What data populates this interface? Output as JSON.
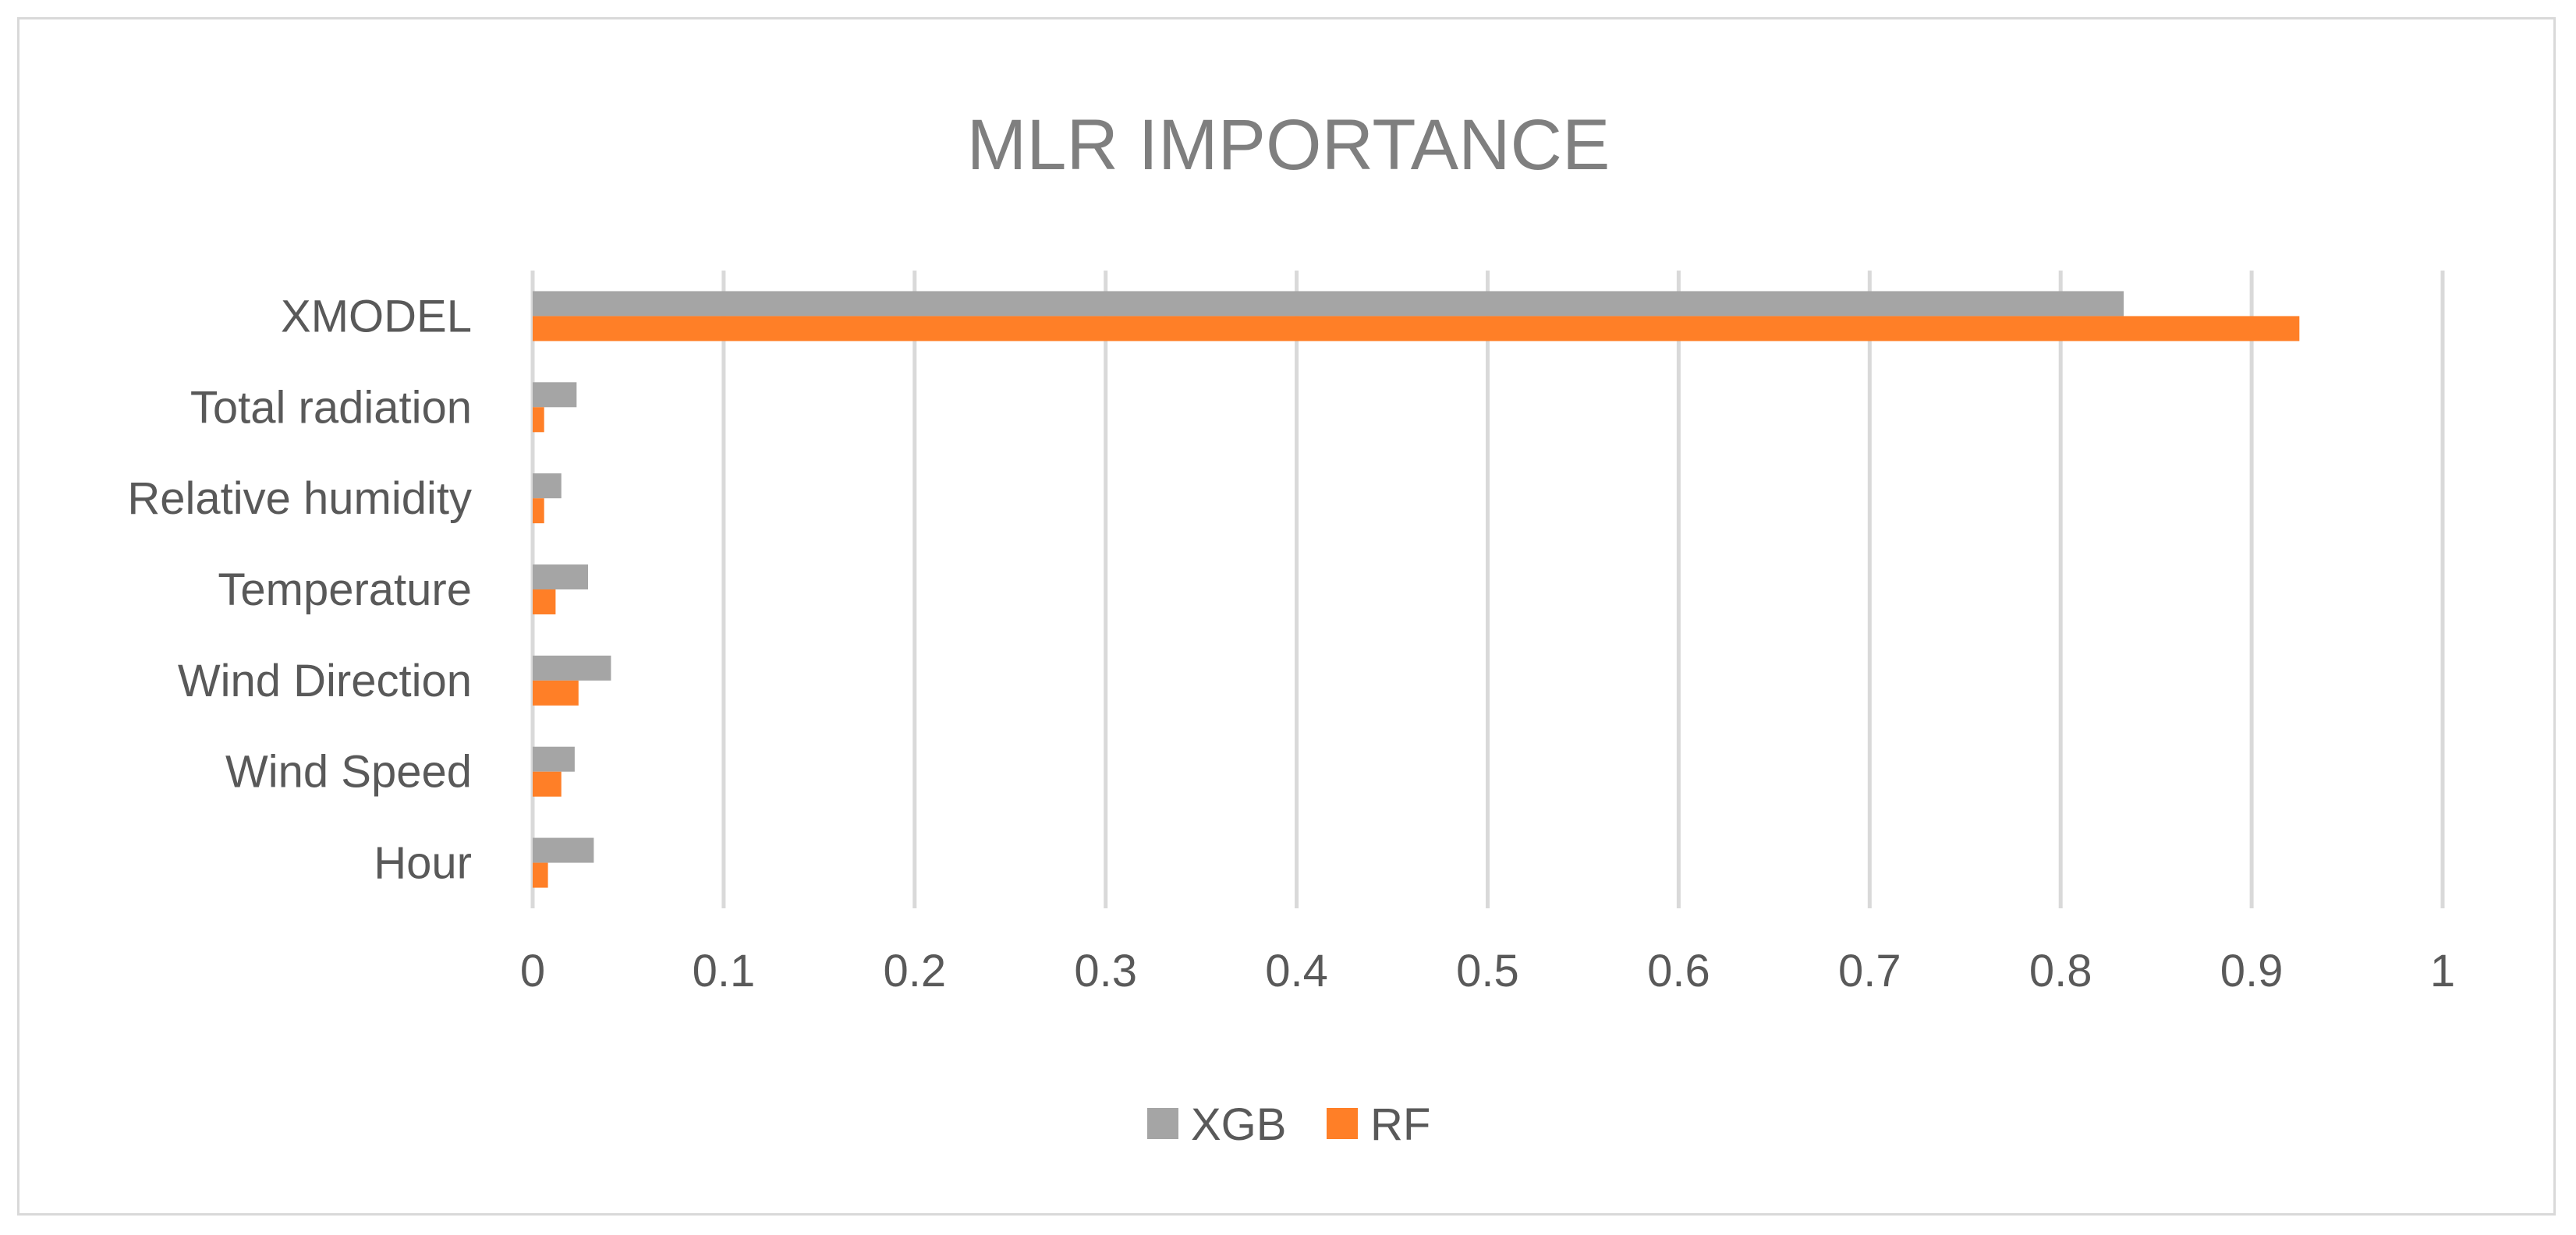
{
  "chart_data": {
    "type": "bar",
    "orientation": "horizontal",
    "title": "MLR IMPORTANCE",
    "categories": [
      "Hour",
      "Wind Speed",
      "Wind Direction",
      "Temperature",
      "Relative humidity",
      "Total radiation",
      "XMODEL"
    ],
    "series": [
      {
        "name": "XGB",
        "color": "#a5a5a5",
        "values": [
          0.032,
          0.022,
          0.041,
          0.029,
          0.015,
          0.023,
          0.833
        ]
      },
      {
        "name": "RF",
        "color": "#ff7f27",
        "values": [
          0.008,
          0.015,
          0.024,
          0.012,
          0.006,
          0.006,
          0.925
        ]
      }
    ],
    "xlim": [
      0,
      1
    ],
    "xticks": [
      0,
      0.1,
      0.2,
      0.3,
      0.4,
      0.5,
      0.6,
      0.7,
      0.8,
      0.9,
      1
    ],
    "xtick_labels": [
      "0",
      "0.1",
      "0.2",
      "0.3",
      "0.4",
      "0.5",
      "0.6",
      "0.7",
      "0.8",
      "0.9",
      "1"
    ],
    "xlabel": "",
    "ylabel": "",
    "grid": "vertical",
    "legend": "bottom"
  }
}
